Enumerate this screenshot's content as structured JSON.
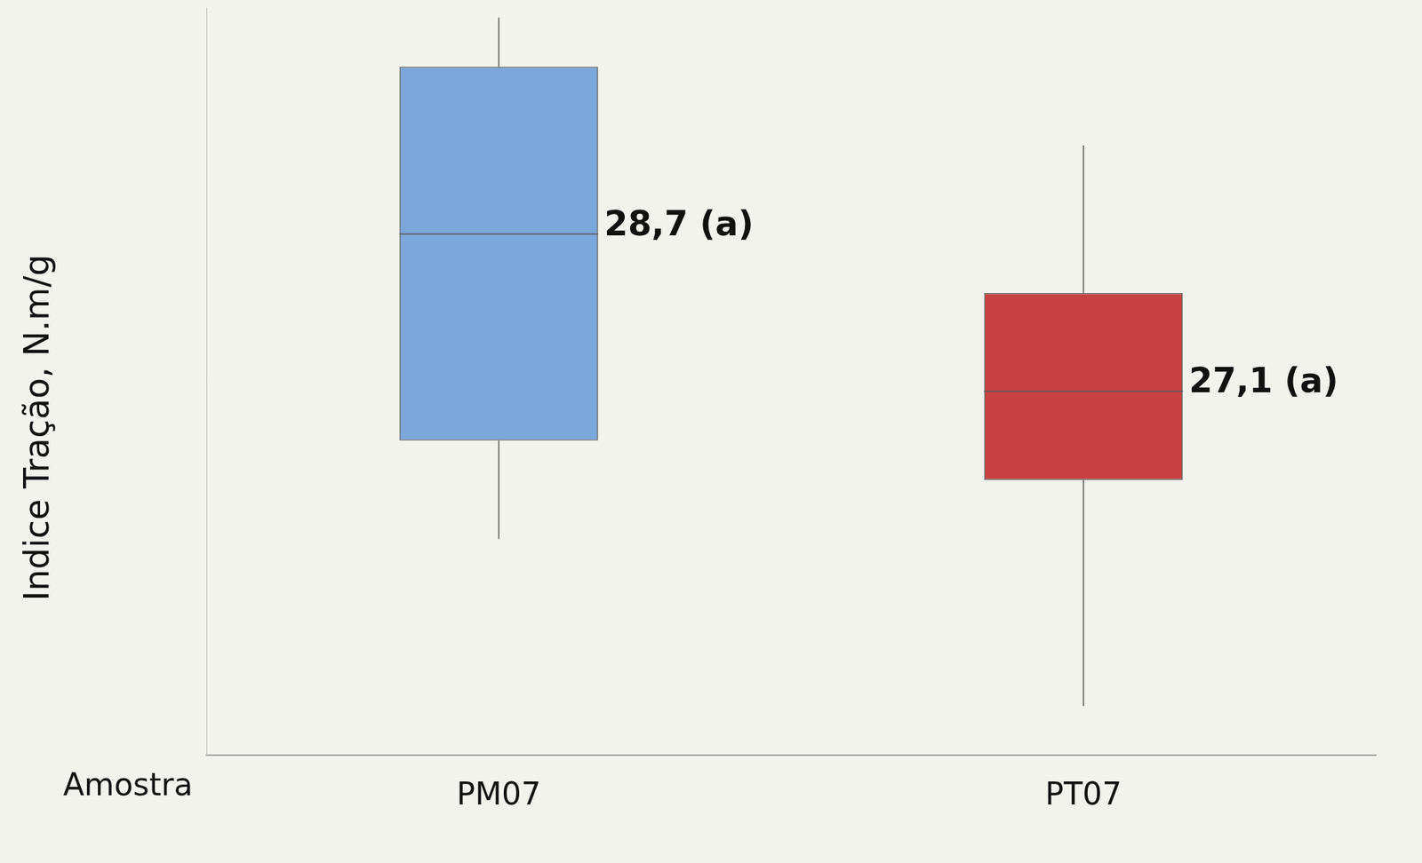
{
  "chart_data": {
    "type": "box",
    "y_label": "Indice Tração, N.m/g",
    "x_label": "Amostra",
    "categories": [
      "PM07",
      "PT07"
    ],
    "values": [
      28.7,
      27.1
    ],
    "value_labels": [
      "28,7 (a)",
      "27,1 (a)"
    ],
    "q1": [
      26.6,
      26.2
    ],
    "q3": [
      30.4,
      28.1
    ],
    "whisker_low": [
      25.6,
      23.9
    ],
    "whisker_high": [
      30.9,
      29.6
    ],
    "colors": [
      "#7ba7da",
      "#c94141"
    ],
    "ylim": [
      23.4,
      31.0
    ],
    "yticks": [],
    "tick_labels": "x",
    "grid": false,
    "data_labels": true
  }
}
